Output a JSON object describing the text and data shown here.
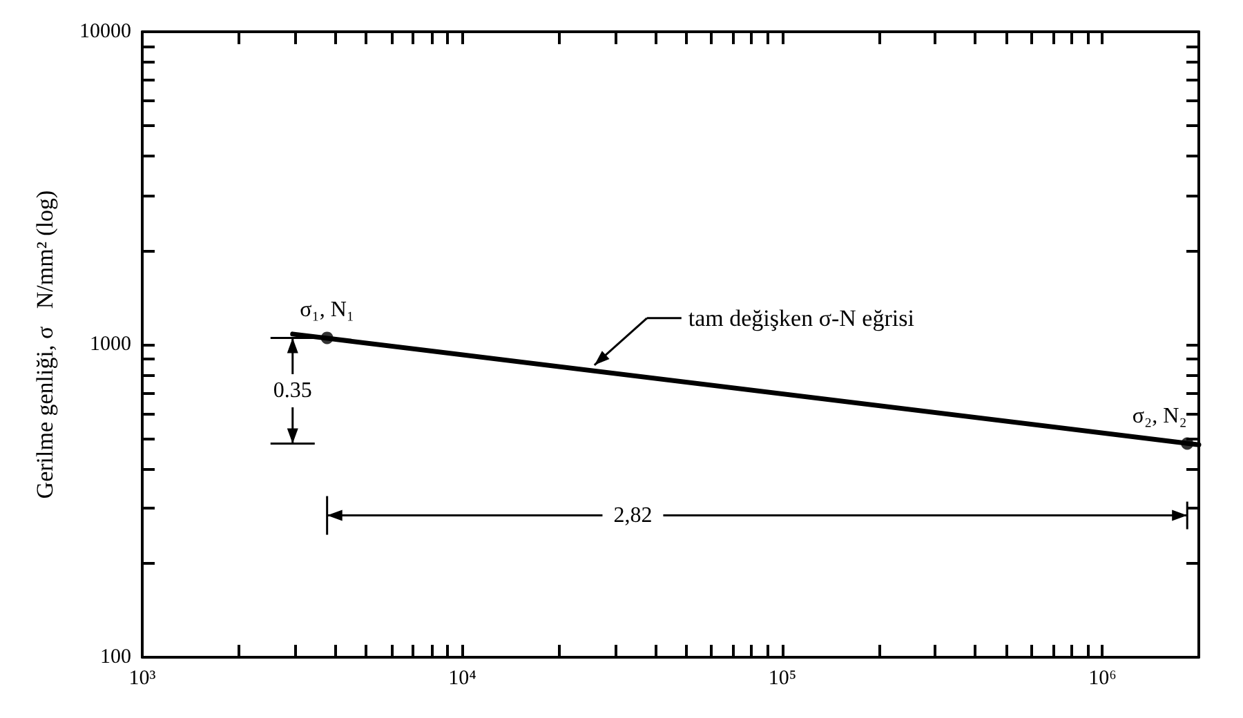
{
  "chart_data": {
    "type": "line",
    "ylabel": "Gerilme genliği, σ   N/mm² (log)",
    "log": "xy",
    "xlim": [
      1000,
      2000000
    ],
    "ylim": [
      100,
      10000
    ],
    "xticks": [
      {
        "value": 1000,
        "label": "10³"
      },
      {
        "value": 2000,
        "label": null
      },
      {
        "value": 3000,
        "label": null
      },
      {
        "value": 4000,
        "label": null
      },
      {
        "value": 5000,
        "label": null
      },
      {
        "value": 6000,
        "label": null
      },
      {
        "value": 7000,
        "label": null
      },
      {
        "value": 8000,
        "label": null
      },
      {
        "value": 9000,
        "label": null
      },
      {
        "value": 10000,
        "label": "10⁴"
      },
      {
        "value": 20000,
        "label": null
      },
      {
        "value": 30000,
        "label": null
      },
      {
        "value": 40000,
        "label": null
      },
      {
        "value": 50000,
        "label": null
      },
      {
        "value": 60000,
        "label": null
      },
      {
        "value": 70000,
        "label": null
      },
      {
        "value": 80000,
        "label": null
      },
      {
        "value": 90000,
        "label": null
      },
      {
        "value": 100000,
        "label": "10⁵"
      },
      {
        "value": 200000,
        "label": null
      },
      {
        "value": 300000,
        "label": null
      },
      {
        "value": 400000,
        "label": null
      },
      {
        "value": 500000,
        "label": null
      },
      {
        "value": 600000,
        "label": null
      },
      {
        "value": 700000,
        "label": null
      },
      {
        "value": 800000,
        "label": null
      },
      {
        "value": 900000,
        "label": null
      },
      {
        "value": 1000000,
        "label": "10⁶"
      },
      {
        "value": 2000000,
        "label": null
      }
    ],
    "yticks": [
      100,
      {
        "value": 200,
        "label": null
      },
      {
        "value": 300,
        "label": null
      },
      {
        "value": 400,
        "label": null
      },
      {
        "value": 500,
        "label": null
      },
      {
        "value": 600,
        "label": null
      },
      {
        "value": 700,
        "label": null
      },
      {
        "value": 800,
        "label": null
      },
      {
        "value": 900,
        "label": null
      },
      1000,
      {
        "value": 2000,
        "label": null
      },
      {
        "value": 3000,
        "label": null
      },
      {
        "value": 4000,
        "label": null
      },
      {
        "value": 5000,
        "label": null
      },
      {
        "value": 6000,
        "label": null
      },
      {
        "value": 7000,
        "label": null
      },
      {
        "value": 8000,
        "label": null
      },
      {
        "value": 9000,
        "label": null
      },
      10000
    ],
    "series": [
      {
        "color": "#000000",
        "x": [
          2950,
          2000000
        ],
        "values": [
          1080,
          478
        ]
      },
      {
        "type": "scatter",
        "color": "#000000",
        "x": [
          3780,
          1840000
        ],
        "values": [
          1050,
          482
        ]
      }
    ],
    "annotations": [
      {
        "text": "σ₁, N₁",
        "x": 3780,
        "y": 1050
      },
      {
        "text": "σ₂, N₂",
        "x": 1840000,
        "y": 482
      },
      "tam değişken σ-N eğrisi",
      {
        "text": "0.35",
        "x": 2950,
        "y": 1050
      },
      "2,82"
    ]
  }
}
